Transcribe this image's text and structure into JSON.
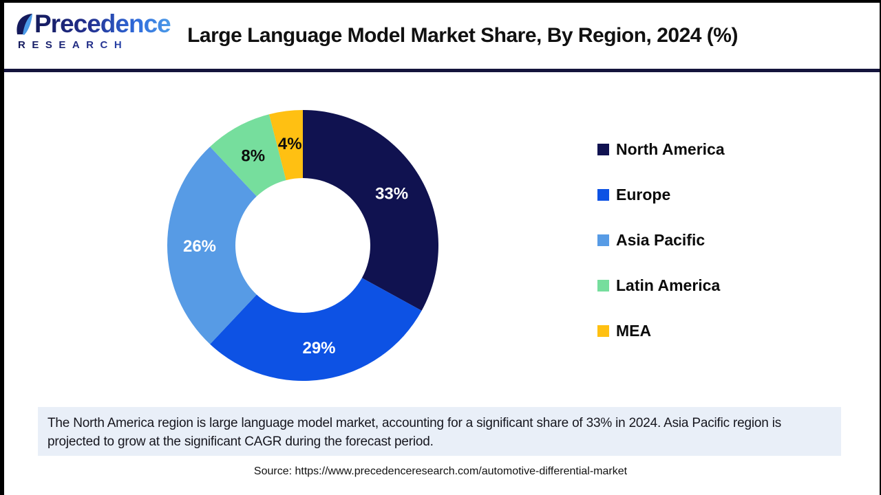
{
  "header": {
    "logo": {
      "name": "Precedence",
      "subname": "RESEARCH"
    },
    "title": "Large Language Model Market Share, By Region, 2024 (%)"
  },
  "chart_data": {
    "type": "pie",
    "subtype": "donut",
    "title": "Large Language Model Market Share, By Region, 2024 (%)",
    "unit": "%",
    "start": "top",
    "direction": "clockwise",
    "inner_radius_ratio": 0.5,
    "legend_position": "right",
    "categories": [
      "North America",
      "Europe",
      "Asia Pacific",
      "Latin America",
      "MEA"
    ],
    "values": [
      33,
      29,
      26,
      8,
      4
    ],
    "slices": [
      {
        "name": "North America",
        "value": 33,
        "label": "33%",
        "color": "#101250",
        "label_color": "#ffffff"
      },
      {
        "name": "Europe",
        "value": 29,
        "label": "29%",
        "color": "#0d52e4",
        "label_color": "#ffffff"
      },
      {
        "name": "Asia Pacific",
        "value": 26,
        "label": "26%",
        "color": "#579be5",
        "label_color": "#ffffff"
      },
      {
        "name": "Latin America",
        "value": 8,
        "label": "8%",
        "color": "#76de9d",
        "label_color": "#0d0d0d"
      },
      {
        "name": "MEA",
        "value": 4,
        "label": "4%",
        "color": "#ffc012",
        "label_color": "#0d0d0d"
      }
    ]
  },
  "summary": {
    "note": "The North America region is large language model market, accounting for a significant share of 33% in 2024. Asia Pacific region is projected to grow at the significant CAGR during the forecast period."
  },
  "source": {
    "text": "Source: https://www.precedenceresearch.com/automotive-differential-market"
  },
  "colors": {
    "separator": "#14143c",
    "summary_bg": "#e9eff8",
    "title_color": "#111111"
  }
}
